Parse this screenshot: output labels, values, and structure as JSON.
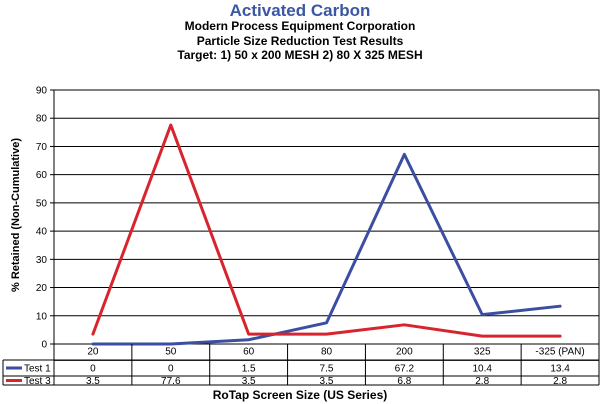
{
  "chart_data": {
    "type": "line",
    "title": "Activated Carbon",
    "subtitle_lines": [
      "Modern Process Equipment Corporation",
      "Particle Size Reduction Test Results",
      "Target: 1) 50 x 200 MESH 2) 80 X 325 MESH"
    ],
    "xlabel": "RoTap Screen Size (US Series)",
    "ylabel": "% Retained (Non-Cumulative)",
    "categories": [
      "20",
      "50",
      "60",
      "80",
      "200",
      "325",
      "-325 (PAN)"
    ],
    "ylim": [
      0,
      90
    ],
    "yticks": [
      0,
      10,
      20,
      30,
      40,
      50,
      60,
      70,
      80,
      90
    ],
    "grid": true,
    "legend_placement": "data-table-left",
    "series": [
      {
        "name": "Test 1",
        "color": "#3b4ea2",
        "values": [
          0,
          0,
          1.5,
          7.5,
          67.2,
          10.4,
          13.4
        ],
        "labels": [
          "0",
          "0",
          "1.5",
          "7.5",
          "67.2",
          "10.4",
          "13.4"
        ]
      },
      {
        "name": "Test 3",
        "color": "#d8242d",
        "values": [
          3.5,
          77.6,
          3.5,
          3.5,
          6.8,
          2.8,
          2.8
        ],
        "labels": [
          "3.5",
          "77.6",
          "3.5",
          "3.5",
          "6.8",
          "2.8",
          "2.8"
        ]
      }
    ]
  }
}
